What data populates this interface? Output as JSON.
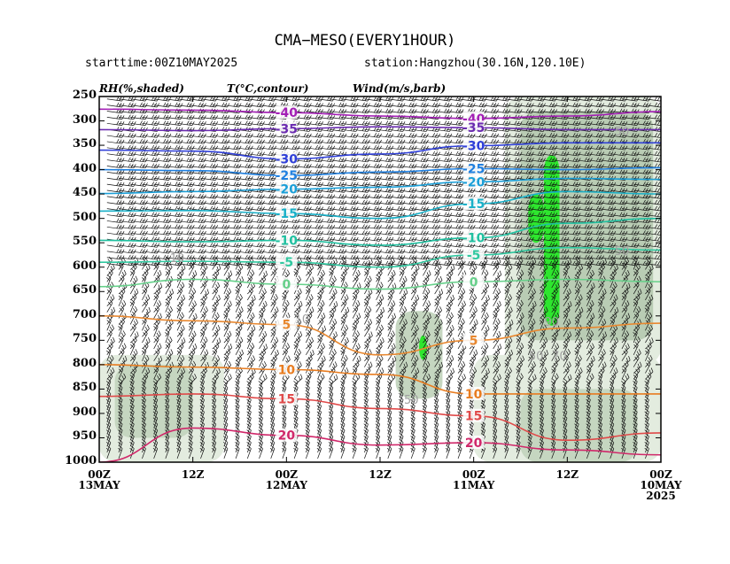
{
  "chart_data": {
    "type": "heatmap",
    "title": "CMA−MESO(EVERY1HOUR)",
    "subtitle_left": "starttime:00Z10MAY2025",
    "subtitle_right": "station:Hangzhou(30.16N,120.10E)",
    "legend_labels": [
      "RH(%,shaded)",
      "T(°C,contour)",
      "Wind(m/s,barb)"
    ],
    "y_axis": {
      "scale": "pressure (hPa)",
      "ylim": [
        1000,
        250
      ],
      "ticks": [
        250,
        300,
        350,
        400,
        450,
        500,
        550,
        600,
        650,
        700,
        750,
        800,
        850,
        900,
        950,
        1000
      ]
    },
    "x_axis": {
      "direction": "time decreasing to the right",
      "range_hours_from_start": [
        72,
        0
      ],
      "ticks": [
        {
          "h": 72,
          "line1": "00Z",
          "line2": "13MAY",
          "line3": ""
        },
        {
          "h": 60,
          "line1": "12Z",
          "line2": "",
          "line3": ""
        },
        {
          "h": 48,
          "line1": "00Z",
          "line2": "12MAY",
          "line3": ""
        },
        {
          "h": 36,
          "line1": "12Z",
          "line2": "",
          "line3": ""
        },
        {
          "h": 24,
          "line1": "00Z",
          "line2": "11MAY",
          "line3": ""
        },
        {
          "h": 12,
          "line1": "12Z",
          "line2": "",
          "line3": ""
        },
        {
          "h": 0,
          "line1": "00Z",
          "line2": "10MAY",
          "line3": "2025"
        }
      ]
    },
    "rh_shading": [
      {
        "rh": 50,
        "color": "#e3ecdf",
        "h0": 24,
        "h1": 0,
        "p0": 1000,
        "p1": 780
      },
      {
        "rh": 50,
        "color": "#e3ecdf",
        "h0": 72,
        "h1": 56,
        "p0": 1000,
        "p1": 780
      },
      {
        "rh": 70,
        "color": "#c5d6c0",
        "h0": 18,
        "h1": 3,
        "p0": 1000,
        "p1": 850
      },
      {
        "rh": 70,
        "color": "#c5d6c0",
        "h0": 70,
        "h1": 60,
        "p0": 950,
        "p1": 800
      },
      {
        "rh": 70,
        "color": "#c5d6c0",
        "h0": 34,
        "h1": 28,
        "p0": 870,
        "p1": 690
      },
      {
        "rh": 50,
        "color": "#e3ecdf",
        "h0": 20,
        "h1": 0,
        "p0": 800,
        "p1": 250
      },
      {
        "rh": 70,
        "color": "#b9ccb4",
        "h0": 18,
        "h1": 1,
        "p0": 750,
        "p1": 280
      },
      {
        "rh": 90,
        "color": "#2ee62e",
        "h0": 15,
        "h1": 13,
        "p0": 720,
        "p1": 370
      },
      {
        "rh": 90,
        "color": "#2ee62e",
        "h0": 17,
        "h1": 15,
        "p0": 550,
        "p1": 450
      },
      {
        "rh": 90,
        "color": "#2ee62e",
        "h0": 31,
        "h1": 30,
        "p0": 790,
        "p1": 740
      }
    ],
    "temperature_contours": [
      {
        "label": "-40",
        "color": "#a31fb5",
        "points": [
          [
            72,
            276
          ],
          [
            60,
            278
          ],
          [
            48,
            283
          ],
          [
            36,
            290
          ],
          [
            24,
            295
          ],
          [
            12,
            290
          ],
          [
            0,
            281
          ]
        ]
      },
      {
        "label": "-35",
        "color": "#6a2bb0",
        "points": [
          [
            72,
            318
          ],
          [
            60,
            320
          ],
          [
            48,
            316
          ],
          [
            36,
            312
          ],
          [
            24,
            314
          ],
          [
            12,
            318
          ],
          [
            0,
            318
          ]
        ]
      },
      {
        "label": "-30",
        "color": "#2f3fd8",
        "points": [
          [
            72,
            360
          ],
          [
            60,
            362
          ],
          [
            48,
            378
          ],
          [
            36,
            368
          ],
          [
            24,
            351
          ],
          [
            12,
            345
          ],
          [
            0,
            345
          ]
        ]
      },
      {
        "label": "-25",
        "color": "#2080e0",
        "points": [
          [
            72,
            400
          ],
          [
            60,
            402
          ],
          [
            48,
            412
          ],
          [
            36,
            405
          ],
          [
            24,
            398
          ],
          [
            12,
            400
          ],
          [
            0,
            396
          ]
        ]
      },
      {
        "label": "-20",
        "color": "#1a9fd8",
        "points": [
          [
            72,
            449
          ],
          [
            60,
            445
          ],
          [
            48,
            440
          ],
          [
            36,
            436
          ],
          [
            24,
            425
          ],
          [
            12,
            418
          ],
          [
            0,
            420
          ]
        ]
      },
      {
        "label": "-15",
        "color": "#18b0c8",
        "points": [
          [
            72,
            485
          ],
          [
            60,
            484
          ],
          [
            48,
            490
          ],
          [
            36,
            500
          ],
          [
            24,
            470
          ],
          [
            12,
            445
          ],
          [
            0,
            450
          ]
        ]
      },
      {
        "label": "-10",
        "color": "#20c0a0",
        "points": [
          [
            72,
            545
          ],
          [
            60,
            548
          ],
          [
            48,
            545
          ],
          [
            36,
            555
          ],
          [
            24,
            540
          ],
          [
            12,
            510
          ],
          [
            0,
            500
          ]
        ]
      },
      {
        "label": "-5",
        "color": "#30c8a0",
        "points": [
          [
            72,
            590
          ],
          [
            60,
            588
          ],
          [
            48,
            590
          ],
          [
            36,
            600
          ],
          [
            24,
            575
          ],
          [
            12,
            560
          ],
          [
            0,
            565
          ]
        ]
      },
      {
        "label": "0",
        "color": "#66d08a",
        "points": [
          [
            72,
            640
          ],
          [
            60,
            625
          ],
          [
            48,
            635
          ],
          [
            36,
            645
          ],
          [
            24,
            630
          ],
          [
            12,
            625
          ],
          [
            0,
            630
          ]
        ]
      },
      {
        "label": "5",
        "color": "#e88830",
        "points": [
          [
            72,
            700
          ],
          [
            60,
            710
          ],
          [
            48,
            718
          ],
          [
            36,
            780
          ],
          [
            24,
            750
          ],
          [
            12,
            725
          ],
          [
            0,
            715
          ]
        ]
      },
      {
        "label": "10",
        "color": "#e87c20",
        "points": [
          [
            72,
            800
          ],
          [
            60,
            805
          ],
          [
            48,
            810
          ],
          [
            36,
            820
          ],
          [
            24,
            860
          ],
          [
            12,
            860
          ],
          [
            0,
            860
          ]
        ]
      },
      {
        "label": "15",
        "color": "#e04a4a",
        "points": [
          [
            72,
            865
          ],
          [
            60,
            860
          ],
          [
            48,
            870
          ],
          [
            36,
            890
          ],
          [
            24,
            905
          ],
          [
            12,
            955
          ],
          [
            0,
            940
          ]
        ]
      },
      {
        "label": "20",
        "color": "#d0286a",
        "points": [
          [
            72,
            1000
          ],
          [
            60,
            930
          ],
          [
            48,
            945
          ],
          [
            36,
            965
          ],
          [
            24,
            960
          ],
          [
            12,
            975
          ],
          [
            0,
            985
          ]
        ]
      }
    ],
    "rh_contour_labels": [
      {
        "label": "50",
        "h": 5,
        "p": 330
      },
      {
        "label": "50",
        "h": 5,
        "p": 575
      },
      {
        "label": "50",
        "h": 32,
        "p": 880
      },
      {
        "label": "70",
        "h": 13,
        "p": 790
      },
      {
        "label": "50",
        "h": 16,
        "p": 790
      },
      {
        "label": "10",
        "h": 46,
        "p": 715
      },
      {
        "label": "10",
        "h": 62,
        "p": 590
      },
      {
        "label": "90",
        "h": 14,
        "p": 720
      }
    ],
    "grid": false,
    "colors": {
      "frame": "#000000",
      "barb": "#111111",
      "rh_50": "#e3ecdf",
      "rh_70": "#c5d6c0",
      "rh_90": "#2ee62e",
      "rh_contour": "#a0a0a0"
    }
  }
}
